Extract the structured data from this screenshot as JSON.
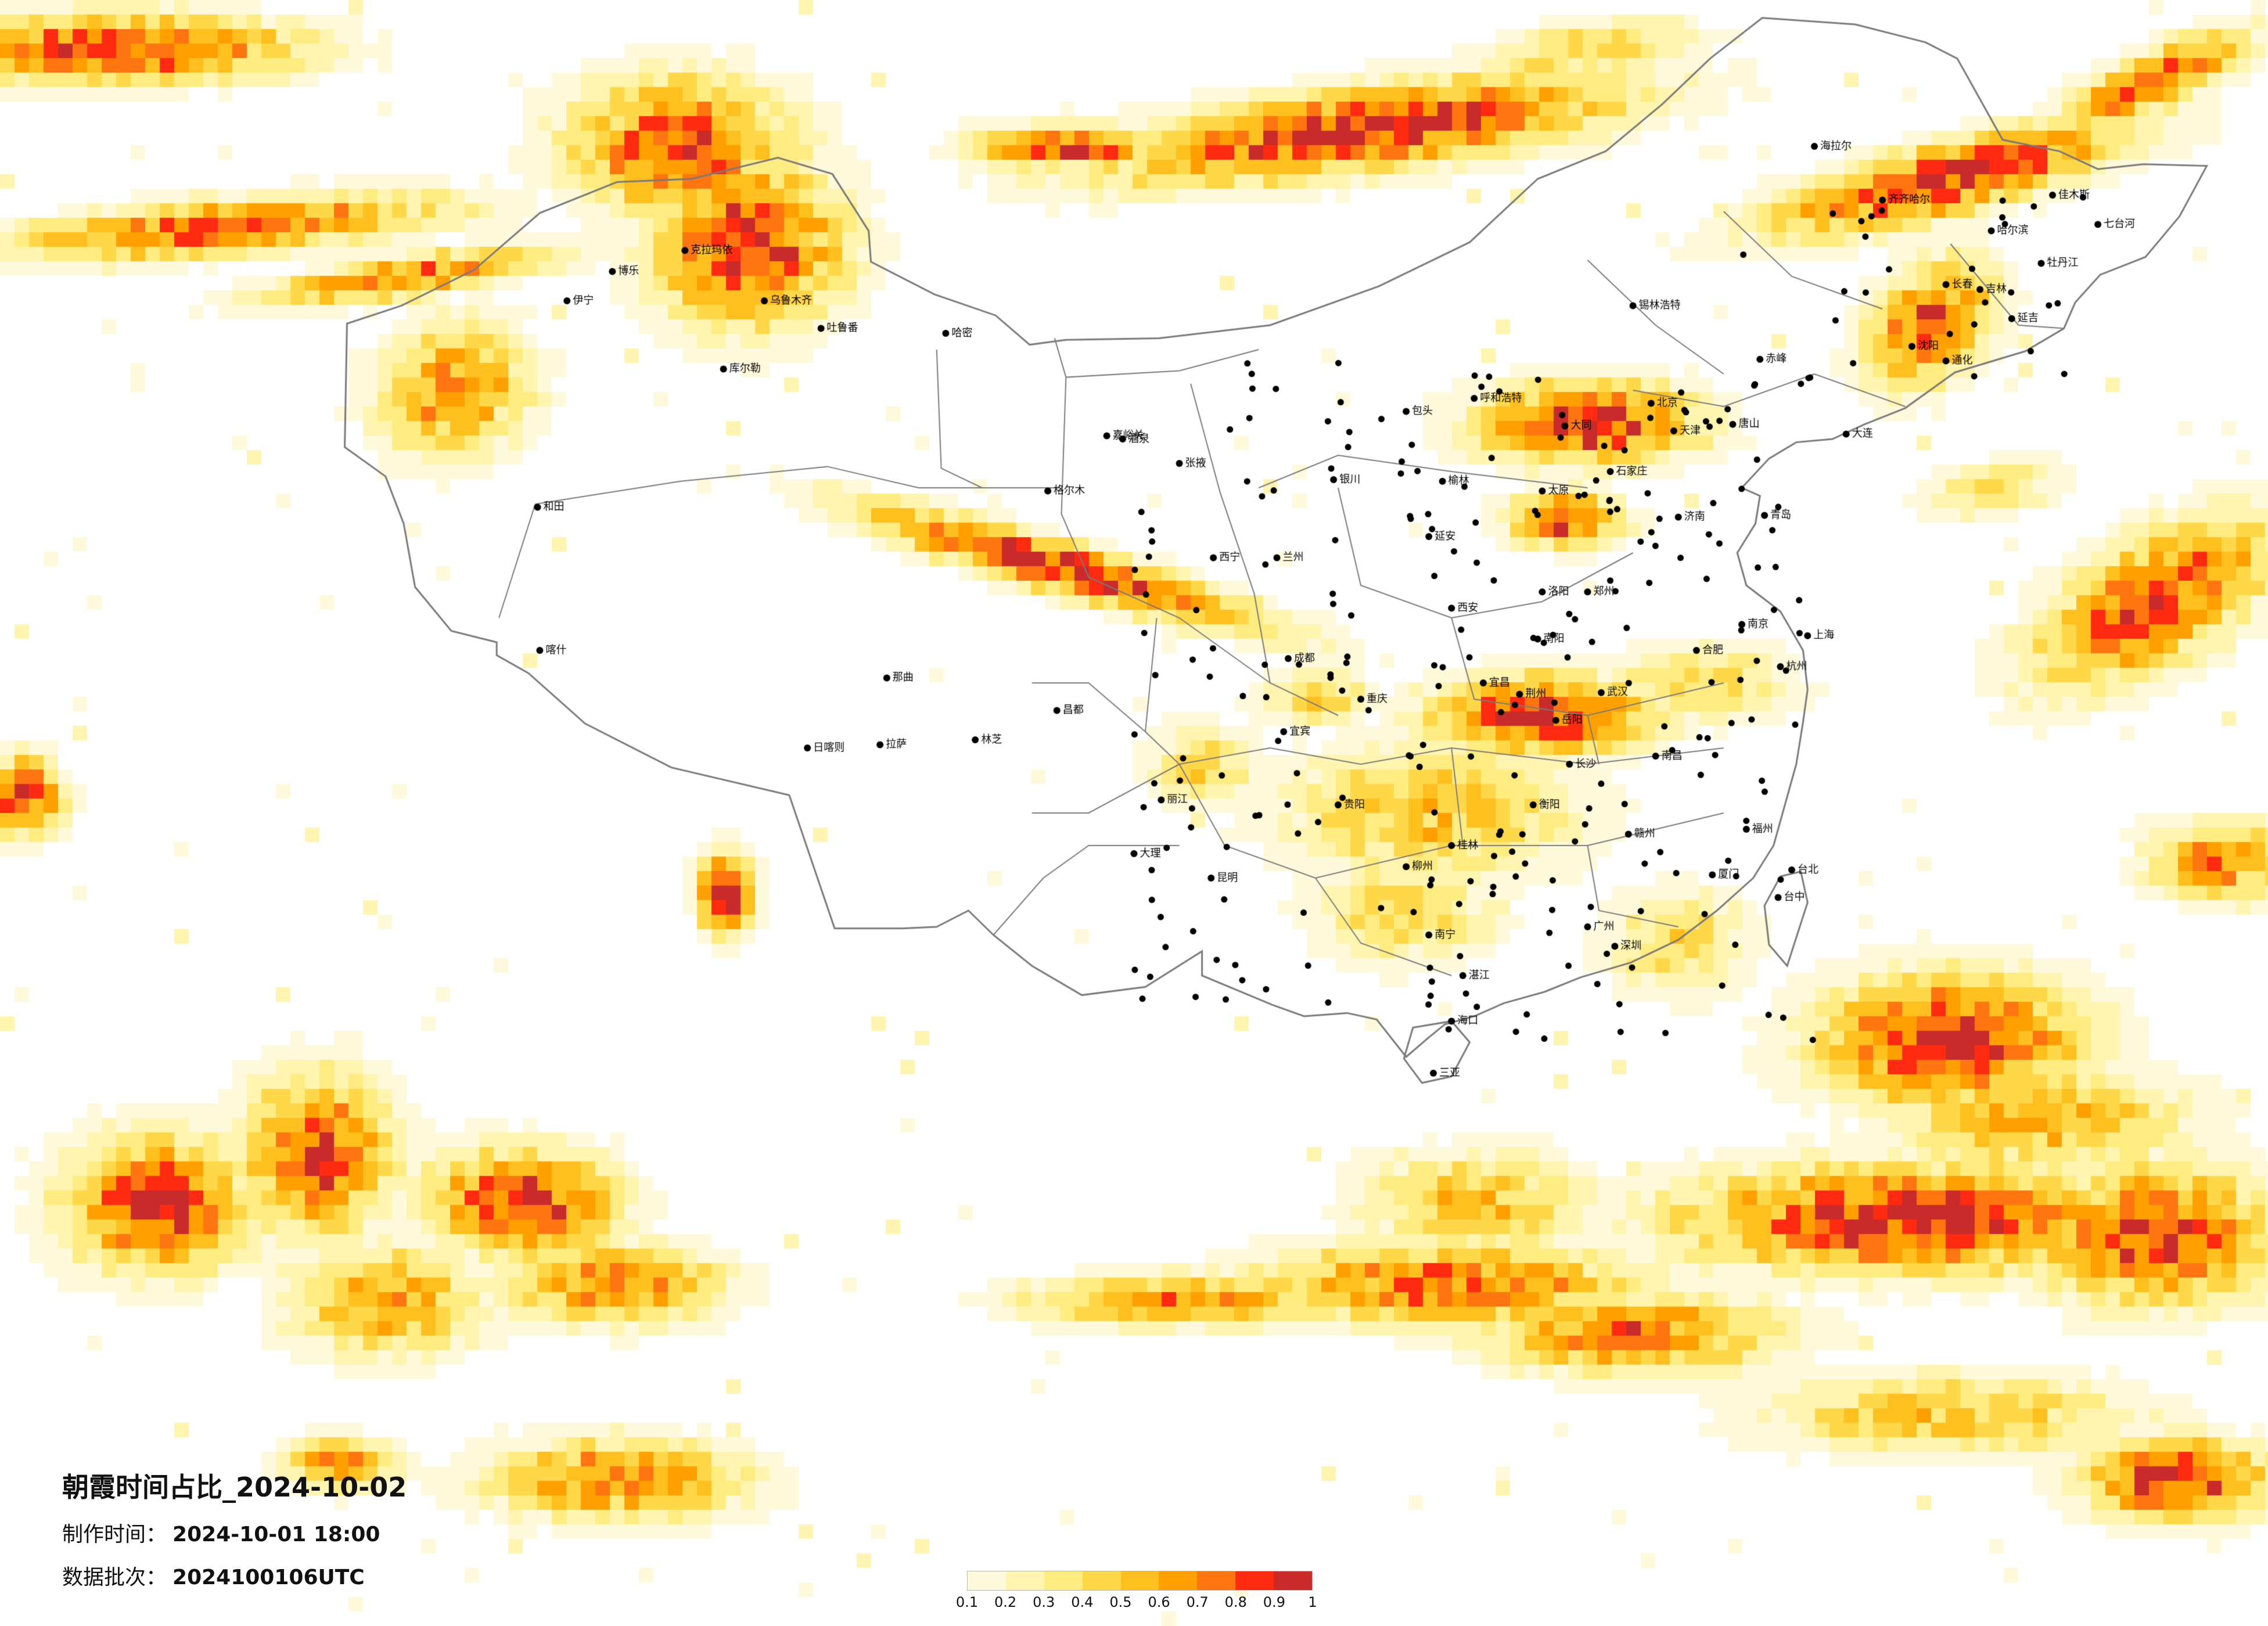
{
  "title": "朝霞时间占比_2024-10-02",
  "made_time_label": "制作时间：",
  "made_time_value": "2024-10-01 18:00",
  "batch_label": "数据批次：",
  "batch_value": "2024100106UTC",
  "legend": {
    "ticks": [
      "0.1",
      "0.2",
      "0.3",
      "0.4",
      "0.5",
      "0.6",
      "0.7",
      "0.8",
      "0.9",
      "1"
    ],
    "colors": [
      "#fff9dc",
      "#fff4b0",
      "#ffec80",
      "#ffd84a",
      "#ffbf1f",
      "#ffa000",
      "#ff7510",
      "#ff2a10",
      "#c92a2a"
    ]
  },
  "map": {
    "type": "choropleth-grid",
    "value_field": "朝霞时间占比",
    "value_range": [
      0.1,
      1
    ],
    "base_colors": {
      "background": "#ffffff",
      "border": "#7a7a7a",
      "city": "#000000"
    }
  },
  "cities": {
    "kalamay": "克拉玛依",
    "urumqi": "乌鲁木齐",
    "turpan": "吐鲁番",
    "hami": "哈密",
    "korla": "库尔勒",
    "yining": "伊宁",
    "bole": "博乐",
    "hotan": "和田",
    "kashgar": "喀什",
    "shigatse": "日喀则",
    "lhasa": "拉萨",
    "nyingchi": "林芝",
    "nagqu": "那曲",
    "chamdo": "昌都",
    "golmud": "格尔木",
    "xining": "西宁",
    "lanzhou": "兰州",
    "jiayuguan": "嘉峪关",
    "jiuquan": "酒泉",
    "zhangye": "张掖",
    "yinchuan": "银川",
    "hohhot": "呼和浩特",
    "baotou": "包头",
    "xilinhot": "锡林浩特",
    "hailar": "海拉尔",
    "qiqihar": "齐齐哈尔",
    "harbin": "哈尔滨",
    "changchun": "长春",
    "jilin": "吉林",
    "shenyang": "沈阳",
    "dalian": "大连",
    "beijing": "北京",
    "tianjin": "天津",
    "shijiazhuang": "石家庄",
    "taiyuan": "太原",
    "jinan": "济南",
    "qingdao": "青岛",
    "zhengzhou": "郑州",
    "xian": "西安",
    "wuhan": "武汉",
    "hefei": "合肥",
    "nanjing": "南京",
    "shanghai": "上海",
    "hangzhou": "杭州",
    "nanchang": "南昌",
    "changsha": "长沙",
    "fuzhou": "福州",
    "xiamen": "厦门",
    "taibei": "台北",
    "taizhong": "台中",
    "guangzhou": "广州",
    "shenzhen": "深圳",
    "nanning": "南宁",
    "haikou": "海口",
    "guiyang": "贵阳",
    "kunming": "昆明",
    "chengdu": "成都",
    "chongqing": "重庆",
    "dali": "大理",
    "lijiang": "丽江",
    "yibin": "宜宾",
    "mudanjiang": "牡丹江",
    "jiamusi": "佳木斯",
    "qitaihe": "七台河",
    "yanji": "延吉",
    "tonghua": "通化",
    "chifeng": "赤峰",
    "tangshan": "唐山",
    "datong": "大同",
    "yulin": "榆林",
    "yanan": "延安",
    "luoyang": "洛阳",
    "nanyang": "南阳",
    "yichang": "宜昌",
    "jingzhou": "荆州",
    "yueyang": "岳阳",
    "hengyang": "衡阳",
    "ganzhou": "赣州",
    "guilin": "桂林",
    "liuzhou": "柳州",
    "zhanjiang": "湛江",
    "sanya": "三亚"
  }
}
